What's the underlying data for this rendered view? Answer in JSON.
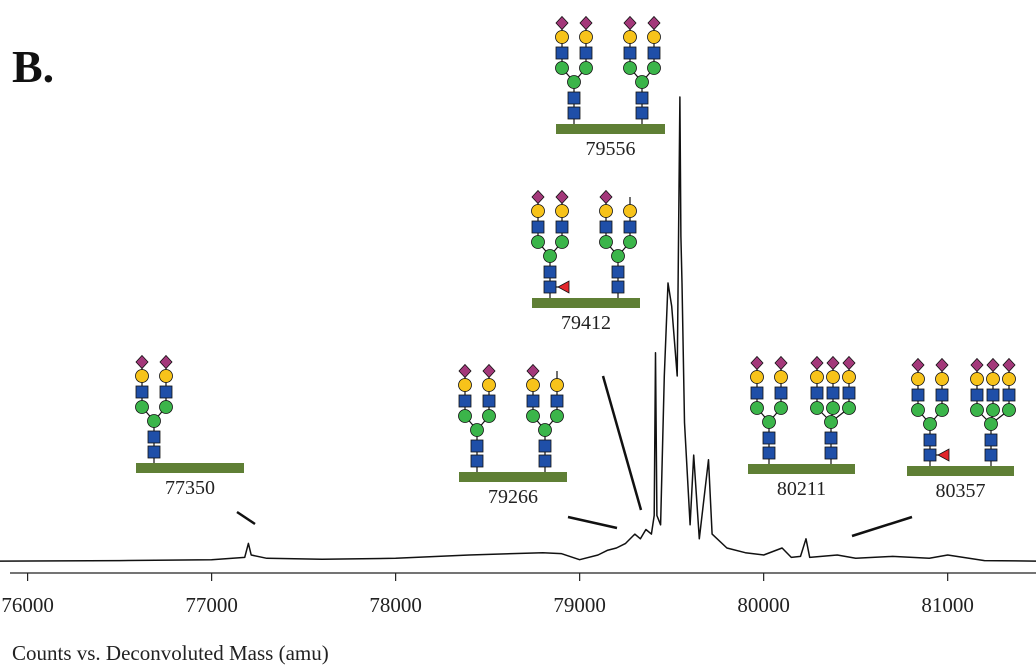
{
  "panel_label": "B.",
  "chart_data": {
    "type": "line",
    "x_label": "Counts vs. Deconvoluted Mass (amu)",
    "x": [
      75850,
      76500,
      77000,
      77180,
      77200,
      77215,
      77300,
      77600,
      78000,
      78400,
      78800,
      78900,
      79000,
      79100,
      79150,
      79200,
      79250,
      79300,
      79330,
      79360,
      79390,
      79405,
      79412,
      79420,
      79440,
      79460,
      79480,
      79500,
      79530,
      79545,
      79550,
      79556,
      79570,
      79600,
      79620,
      79650,
      79700,
      79720,
      79800,
      79900,
      80000,
      80100,
      80150,
      80200,
      80230,
      80250,
      80400,
      80500,
      80700,
      80900,
      81000,
      81200,
      81480
    ],
    "values": [
      0.2,
      0.3,
      0.5,
      1,
      4,
      1.5,
      0.8,
      0.6,
      0.8,
      1.5,
      2,
      1.8,
      0.5,
      1.5,
      2.5,
      3,
      4,
      6,
      5,
      7,
      6,
      10,
      45,
      10,
      8,
      40,
      60,
      55,
      40,
      100,
      70,
      60,
      30,
      8,
      23,
      5,
      22,
      6,
      3,
      2,
      1.5,
      3,
      1,
      1.2,
      5,
      1,
      1.5,
      0.8,
      1.2,
      0.8,
      1.5,
      0.3,
      0.2
    ],
    "xlim": [
      75850,
      81480
    ],
    "ylim": [
      0,
      100
    ],
    "xticks": [
      76000,
      77000,
      78000,
      79000,
      80000,
      81000
    ],
    "color": "#111111",
    "annotations": [
      "77350",
      "79266",
      "79412",
      "79556",
      "80211",
      "80357"
    ]
  }
}
